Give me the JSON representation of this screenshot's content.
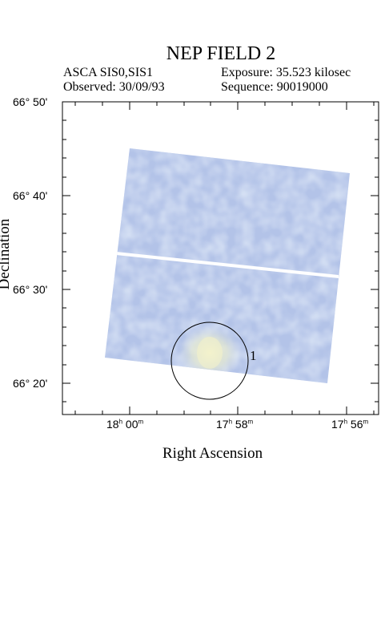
{
  "figure": {
    "title": "NEP FIELD 2",
    "instrument": "ASCA SIS0,SIS1",
    "exposure": "Exposure: 35.523 kilosec",
    "observed": "Observed: 30/09/93",
    "sequence": "Sequence: 90019000"
  },
  "axes": {
    "xlabel": "Right Ascension",
    "ylabel": "Declination",
    "dec_ticks": [
      "66° 50'",
      "66° 40'",
      "66° 30'",
      "66° 20'"
    ],
    "ra_ticks": [
      {
        "h": "18",
        "m": "00"
      },
      {
        "h": "17",
        "m": "58"
      },
      {
        "h": "17",
        "m": "56"
      }
    ]
  },
  "sources": [
    {
      "id": "1"
    }
  ],
  "colors": {
    "image_base": "#a9bce6",
    "image_light": "#cfd9ee",
    "source_glow": "#eef0c8"
  }
}
